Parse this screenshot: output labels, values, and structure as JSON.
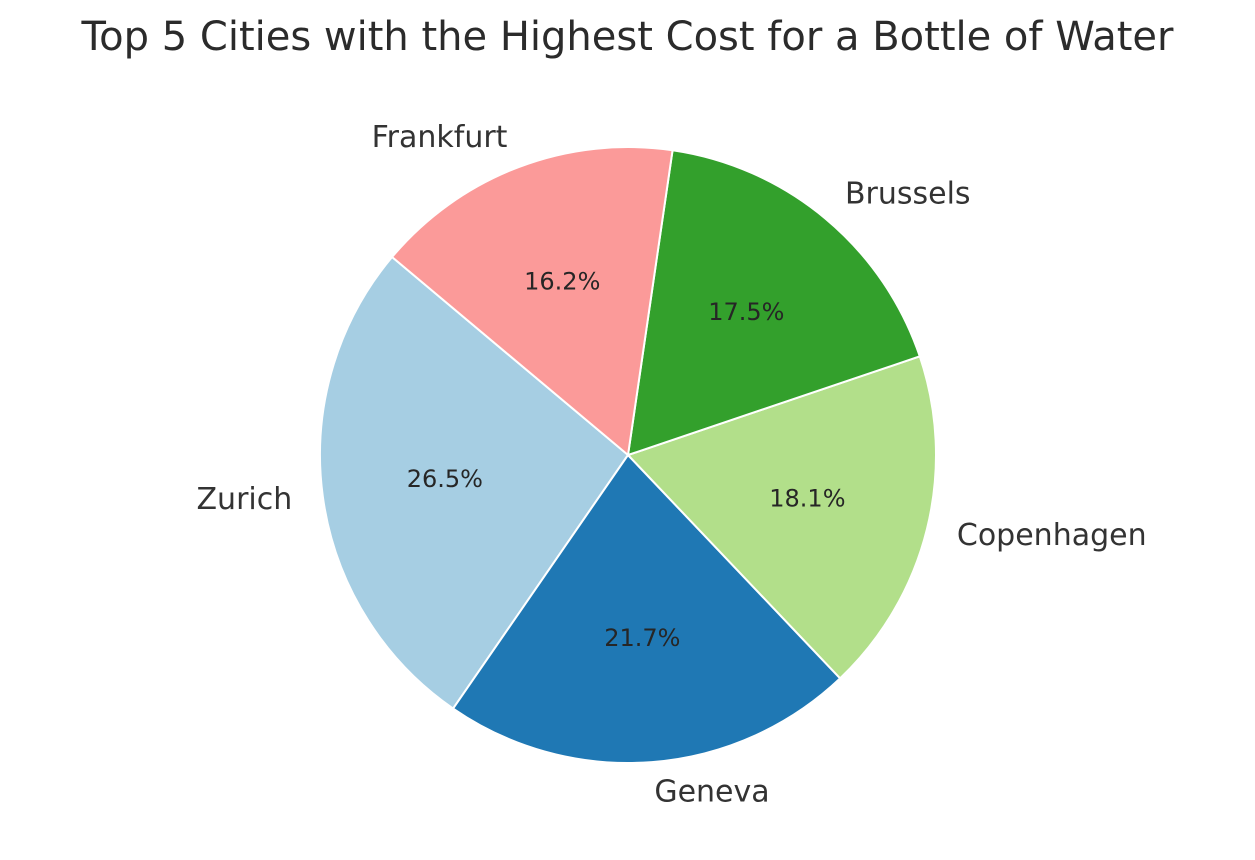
{
  "chart_data": {
    "type": "pie",
    "title": "Top 5 Cities with the Highest Cost for a Bottle of Water",
    "categories": [
      "Zurich",
      "Geneva",
      "Copenhagen",
      "Brussels",
      "Frankfurt"
    ],
    "values": [
      26.5,
      21.7,
      18.1,
      17.5,
      16.2
    ],
    "percent_labels": [
      "26.5%",
      "21.7%",
      "18.1%",
      "17.5%",
      "16.2%"
    ],
    "colors": [
      "#a6cee3",
      "#1f78b4",
      "#b2df8a",
      "#33a02c",
      "#fb9a99"
    ],
    "start_angle_deg": 140,
    "direction": "counterclockwise",
    "legend": "none"
  }
}
